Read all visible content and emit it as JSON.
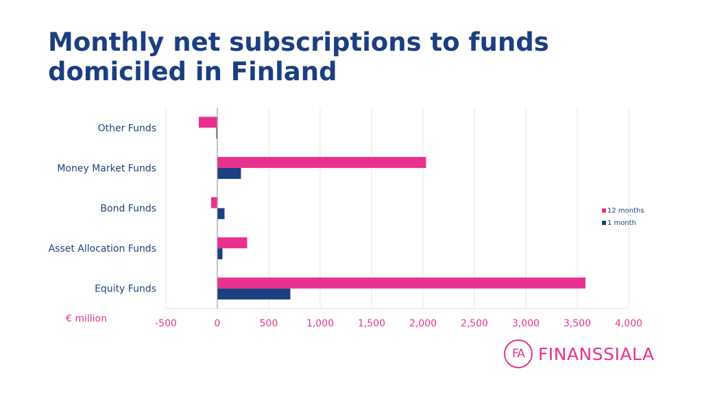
{
  "chart_data": {
    "type": "bar",
    "orientation": "horizontal",
    "title": "Monthly net subscriptions to funds domiciled in Finland",
    "xlabel": "€ million",
    "categories": [
      "Other Funds",
      "Money Market Funds",
      "Bond Funds",
      "Asset Allocation Funds",
      "Equity Funds"
    ],
    "series": [
      {
        "name": "12 months",
        "color": "#e8318f",
        "values": [
          -180,
          2030,
          -60,
          290,
          3580
        ]
      },
      {
        "name": "1 month",
        "color": "#1b3f80",
        "values": [
          -10,
          230,
          70,
          50,
          710
        ]
      }
    ],
    "xlim": [
      -500,
      4000
    ],
    "xticks": [
      -500,
      0,
      500,
      1000,
      1500,
      2000,
      2500,
      3000,
      3500,
      4000
    ],
    "xtick_labels": [
      "-500",
      "0",
      "500",
      "1,000",
      "1,500",
      "2,000",
      "2,500",
      "3,000",
      "3,500",
      "4,000"
    ],
    "grid": true,
    "legend_position": "right"
  },
  "logo": {
    "mark": "FA",
    "text": "FINANSSIALA"
  }
}
